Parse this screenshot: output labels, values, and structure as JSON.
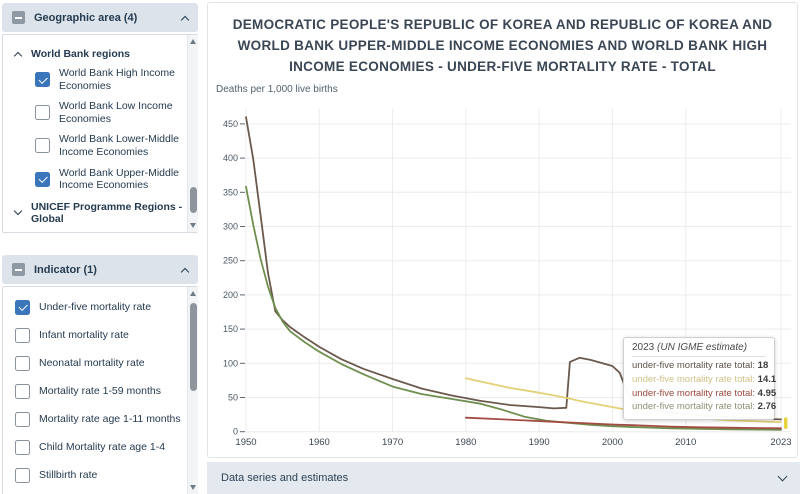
{
  "sidebar": {
    "panels": [
      {
        "title": "Geographic area (4)",
        "items": [
          {
            "type": "group",
            "label": "World Bank regions",
            "state": "expanded"
          },
          {
            "type": "checkbox",
            "label": "World Bank High Income Economies",
            "checked": true
          },
          {
            "type": "checkbox",
            "label": "World Bank Low Income Economies",
            "checked": false
          },
          {
            "type": "checkbox",
            "label": "World Bank Lower-Middle Income Economies",
            "checked": false
          },
          {
            "type": "checkbox",
            "label": "World Bank Upper-Middle Income Economies",
            "checked": true
          },
          {
            "type": "group",
            "label": "UNICEF Programme Regions - Global",
            "state": "collapsed"
          }
        ]
      },
      {
        "title": "Indicator (1)",
        "items": [
          {
            "type": "checkbox",
            "label": "Under-five mortality rate",
            "checked": true
          },
          {
            "type": "checkbox",
            "label": "Infant mortality rate",
            "checked": false
          },
          {
            "type": "checkbox",
            "label": "Neonatal mortality rate",
            "checked": false
          },
          {
            "type": "checkbox",
            "label": "Mortality rate 1-59 months",
            "checked": false
          },
          {
            "type": "checkbox",
            "label": "Mortality rate age 1-11 months",
            "checked": false
          },
          {
            "type": "checkbox",
            "label": "Child Mortality rate age 1-4",
            "checked": false
          },
          {
            "type": "checkbox",
            "label": "Stillbirth rate",
            "checked": false
          }
        ]
      }
    ]
  },
  "main": {
    "title": "DEMOCRATIC PEOPLE'S REPUBLIC OF KOREA AND REPUBLIC OF KOREA AND WORLD BANK UPPER-MIDDLE INCOME ECONOMIES AND WORLD BANK HIGH INCOME ECONOMIES - UNDER-FIVE MORTALITY RATE - TOTAL",
    "unit_label": "Deaths per 1,000 live births",
    "bottom_bar_label": "Data series and estimates"
  },
  "tooltip": {
    "year": "2023",
    "source": "(UN IGME estimate)",
    "rows": [
      {
        "label": "under-five mortality rate total:",
        "value": "18",
        "color": "#5d5348"
      },
      {
        "label": "under-five mortality rate total:",
        "value": "14.1",
        "color": "#cfc187"
      },
      {
        "label": "under-five mortality rate total:",
        "value": "4.95",
        "color": "#9a4a3e"
      },
      {
        "label": "under-five mortality rate total:",
        "value": "2.76",
        "color": "#8a9474"
      }
    ]
  },
  "chart_data": {
    "type": "line",
    "title": "Under-five mortality rate - total",
    "ylabel": "Deaths per 1,000 live births",
    "xlabel": "",
    "x_ticks": [
      1950,
      1960,
      1970,
      1980,
      1990,
      2000,
      2010,
      2023
    ],
    "x_tick_labels": [
      "1950",
      "1960",
      "1970",
      "1980",
      "1990",
      "2000",
      "2010",
      "2023"
    ],
    "y_ticks": [
      0,
      50,
      100,
      150,
      200,
      250,
      300,
      350,
      400,
      450
    ],
    "xlim": [
      1950,
      2023
    ],
    "ylim": [
      0,
      475
    ],
    "grid": true,
    "legend_position": "none",
    "hover_marker": {
      "year": 2023,
      "value_top": 21,
      "value_bottom": 4,
      "color": "#e7d43c"
    },
    "series": [
      {
        "name": "Democratic People's Republic of Korea",
        "color": "#6a594c",
        "value_2023": 18,
        "points": [
          [
            1950,
            460
          ],
          [
            1951,
            398
          ],
          [
            1952,
            315
          ],
          [
            1953,
            232
          ],
          [
            1954,
            176
          ],
          [
            1955,
            163
          ],
          [
            1956,
            153
          ],
          [
            1958,
            138
          ],
          [
            1960,
            124
          ],
          [
            1963,
            106
          ],
          [
            1966,
            92
          ],
          [
            1970,
            77
          ],
          [
            1974,
            63
          ],
          [
            1978,
            53
          ],
          [
            1982,
            45
          ],
          [
            1986,
            39
          ],
          [
            1990,
            36
          ],
          [
            1992,
            34
          ],
          [
            1993.7,
            35
          ],
          [
            1994.2,
            102
          ],
          [
            1995.5,
            108
          ],
          [
            1997,
            105
          ],
          [
            2000,
            96
          ],
          [
            2001,
            86
          ],
          [
            2002,
            58
          ],
          [
            2003,
            43
          ],
          [
            2005,
            33
          ],
          [
            2008,
            28
          ],
          [
            2012,
            24
          ],
          [
            2016,
            21
          ],
          [
            2020,
            19
          ],
          [
            2023,
            18
          ]
        ]
      },
      {
        "name": "Republic of Korea",
        "color": "#6f8f4f",
        "value_2023": 2.76,
        "points": [
          [
            1950,
            358
          ],
          [
            1951,
            302
          ],
          [
            1952,
            252
          ],
          [
            1953,
            212
          ],
          [
            1954,
            181
          ],
          [
            1955,
            161
          ],
          [
            1956,
            147
          ],
          [
            1958,
            131
          ],
          [
            1960,
            117
          ],
          [
            1963,
            99
          ],
          [
            1966,
            84
          ],
          [
            1970,
            66
          ],
          [
            1974,
            55
          ],
          [
            1978,
            48
          ],
          [
            1982,
            41
          ],
          [
            1985,
            32
          ],
          [
            1988,
            22
          ],
          [
            1991,
            16
          ],
          [
            1994,
            13
          ],
          [
            1997,
            10
          ],
          [
            2000,
            8
          ],
          [
            2004,
            6.3
          ],
          [
            2008,
            5
          ],
          [
            2012,
            4.2
          ],
          [
            2016,
            3.5
          ],
          [
            2020,
            3
          ],
          [
            2023,
            2.76
          ]
        ]
      },
      {
        "name": "World Bank Upper-Middle Income Economies",
        "color": "#e3d077",
        "value_2023": 14.1,
        "points": [
          [
            1980,
            78
          ],
          [
            1983,
            71
          ],
          [
            1986,
            64
          ],
          [
            1990,
            57
          ],
          [
            1993,
            51
          ],
          [
            1996,
            44
          ],
          [
            2000,
            36
          ],
          [
            2004,
            28
          ],
          [
            2008,
            23
          ],
          [
            2012,
            19.5
          ],
          [
            2016,
            16.5
          ],
          [
            2020,
            15
          ],
          [
            2023,
            14.1
          ]
        ]
      },
      {
        "name": "World Bank High Income Economies",
        "color": "#a34c44",
        "value_2023": 4.95,
        "points": [
          [
            1980,
            20.5
          ],
          [
            1984,
            18.5
          ],
          [
            1988,
            16.5
          ],
          [
            1992,
            14.5
          ],
          [
            1996,
            12.5
          ],
          [
            2000,
            10.5
          ],
          [
            2004,
            9
          ],
          [
            2008,
            7.5
          ],
          [
            2012,
            6.5
          ],
          [
            2016,
            5.8
          ],
          [
            2020,
            5.2
          ],
          [
            2023,
            4.95
          ]
        ]
      }
    ]
  }
}
